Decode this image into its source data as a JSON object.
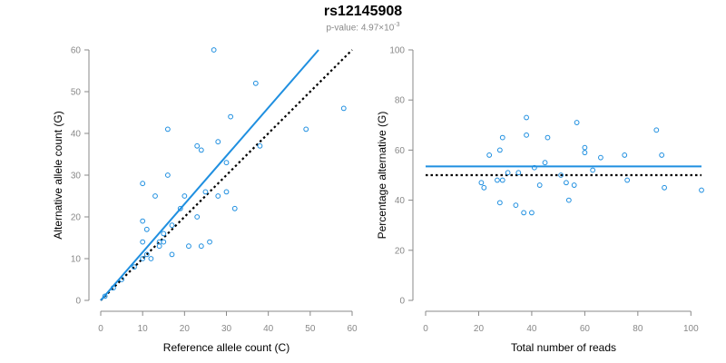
{
  "title": "rs12145908",
  "subtitle": {
    "prefix": "p-value: 4.97×10",
    "exponent": "-3"
  },
  "colors": {
    "points": "#1f8fe0",
    "fit_line": "#1f8fe0",
    "reference_line": "#000000",
    "axis": "#888888",
    "tick_label": "#888888",
    "axis_label": "#000000"
  },
  "chart_data": [
    {
      "type": "scatter",
      "title": "",
      "xlabel": "Reference allele count (C)",
      "ylabel": "Alternative allele count (G)",
      "xlim": [
        0,
        60
      ],
      "ylim": [
        0,
        60
      ],
      "xticks": [
        0,
        10,
        20,
        30,
        40,
        50,
        60
      ],
      "yticks": [
        0,
        10,
        20,
        30,
        40,
        50,
        60
      ],
      "grid": false,
      "points": [
        [
          1,
          1
        ],
        [
          3,
          3
        ],
        [
          5,
          5
        ],
        [
          8,
          8
        ],
        [
          10,
          10
        ],
        [
          10,
          14
        ],
        [
          10,
          19
        ],
        [
          10,
          28
        ],
        [
          11,
          17
        ],
        [
          11,
          11
        ],
        [
          12,
          10
        ],
        [
          13,
          25
        ],
        [
          14,
          13
        ],
        [
          14,
          14
        ],
        [
          15,
          14
        ],
        [
          15,
          16
        ],
        [
          16,
          30
        ],
        [
          16,
          41
        ],
        [
          17,
          11
        ],
        [
          17,
          18
        ],
        [
          19,
          22
        ],
        [
          20,
          25
        ],
        [
          21,
          13
        ],
        [
          23,
          20
        ],
        [
          23,
          37
        ],
        [
          24,
          13
        ],
        [
          24,
          36
        ],
        [
          25,
          26
        ],
        [
          26,
          14
        ],
        [
          27,
          60
        ],
        [
          28,
          25
        ],
        [
          28,
          38
        ],
        [
          30,
          26
        ],
        [
          30,
          33
        ],
        [
          31,
          44
        ],
        [
          32,
          22
        ],
        [
          37,
          52
        ],
        [
          38,
          37
        ],
        [
          49,
          41
        ],
        [
          58,
          46
        ]
      ],
      "lines": [
        {
          "name": "",
          "style": "solid",
          "color": "#1f8fe0",
          "points": [
            [
              0,
              0
            ],
            [
              52,
              60
            ]
          ]
        },
        {
          "name": "",
          "style": "dotted",
          "color": "#000000",
          "points": [
            [
              0,
              0
            ],
            [
              60,
              60
            ]
          ]
        }
      ]
    },
    {
      "type": "scatter",
      "title": "",
      "xlabel": "Total number of reads",
      "ylabel": "Percentage alternative (G)",
      "xlim": [
        0,
        104
      ],
      "ylim": [
        0,
        100
      ],
      "xticks": [
        0,
        20,
        40,
        60,
        80,
        100
      ],
      "yticks": [
        0,
        20,
        40,
        60,
        80,
        100
      ],
      "grid": false,
      "points": [
        [
          21,
          47
        ],
        [
          22,
          45
        ],
        [
          24,
          58
        ],
        [
          27,
          48
        ],
        [
          28,
          39
        ],
        [
          28,
          60
        ],
        [
          29,
          48
        ],
        [
          29,
          65
        ],
        [
          31,
          51
        ],
        [
          34,
          38
        ],
        [
          35,
          51
        ],
        [
          37,
          35
        ],
        [
          38,
          73
        ],
        [
          38,
          66
        ],
        [
          40,
          35
        ],
        [
          41,
          53
        ],
        [
          43,
          46
        ],
        [
          45,
          55
        ],
        [
          46,
          65
        ],
        [
          51,
          50
        ],
        [
          53,
          47
        ],
        [
          54,
          40
        ],
        [
          56,
          46
        ],
        [
          57,
          71
        ],
        [
          60,
          59
        ],
        [
          60,
          61
        ],
        [
          63,
          52
        ],
        [
          66,
          57
        ],
        [
          75,
          58
        ],
        [
          76,
          48
        ],
        [
          87,
          68
        ],
        [
          89,
          58
        ],
        [
          90,
          45
        ],
        [
          104,
          44
        ]
      ],
      "lines": [
        {
          "name": "",
          "style": "solid",
          "color": "#1f8fe0",
          "points": [
            [
              0,
              53.5
            ],
            [
              104,
              53.5
            ]
          ]
        },
        {
          "name": "",
          "style": "dotted",
          "color": "#000000",
          "points": [
            [
              0,
              50
            ],
            [
              104,
              50
            ]
          ]
        }
      ]
    }
  ]
}
